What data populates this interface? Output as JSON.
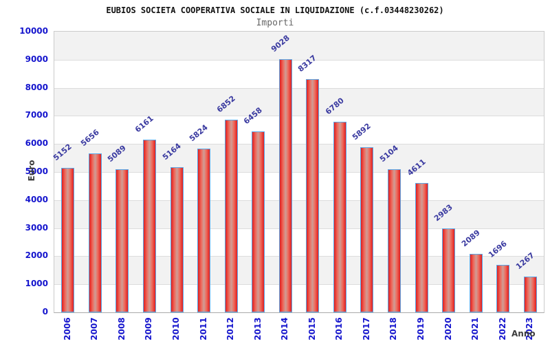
{
  "chart_data": {
    "type": "bar",
    "title": "EUBIOS SOCIETA COOPERATIVA SOCIALE IN LIQUIDAZIONE (c.f.03448230262)",
    "subtitle": "Importi",
    "xlabel": "Anno",
    "ylabel": "Euro",
    "categories": [
      "2006",
      "2007",
      "2008",
      "2009",
      "2010",
      "2011",
      "2012",
      "2013",
      "2014",
      "2015",
      "2016",
      "2017",
      "2018",
      "2019",
      "2020",
      "2021",
      "2022",
      "2023"
    ],
    "values": [
      5152,
      5656,
      5089,
      6161,
      5164,
      5824,
      6852,
      6458,
      9028,
      8317,
      6780,
      5892,
      5104,
      4611,
      2983,
      2089,
      1696,
      1267
    ],
    "ylim": [
      0,
      10000
    ],
    "yticks": [
      0,
      1000,
      2000,
      3000,
      4000,
      5000,
      6000,
      7000,
      8000,
      9000,
      10000
    ],
    "legend": "none",
    "grid": "horizontal gridlines with alternating shaded bands",
    "bar_value_labels": true,
    "colors": {
      "bar_edge_red": "#e01f1f",
      "bar_mid_light": "#cf9d96",
      "bar_inner_red": "#ef6a5c",
      "bar_border": "#59a7e8",
      "axis_tick_label": "#1515cd",
      "value_label": "#3a3aa0",
      "axis_title": "#3c3c3c",
      "band_shade": "#f2f2f2",
      "gridline": "#dcdcdc",
      "title_color": "#111111",
      "subtitle_color": "#666666"
    }
  }
}
